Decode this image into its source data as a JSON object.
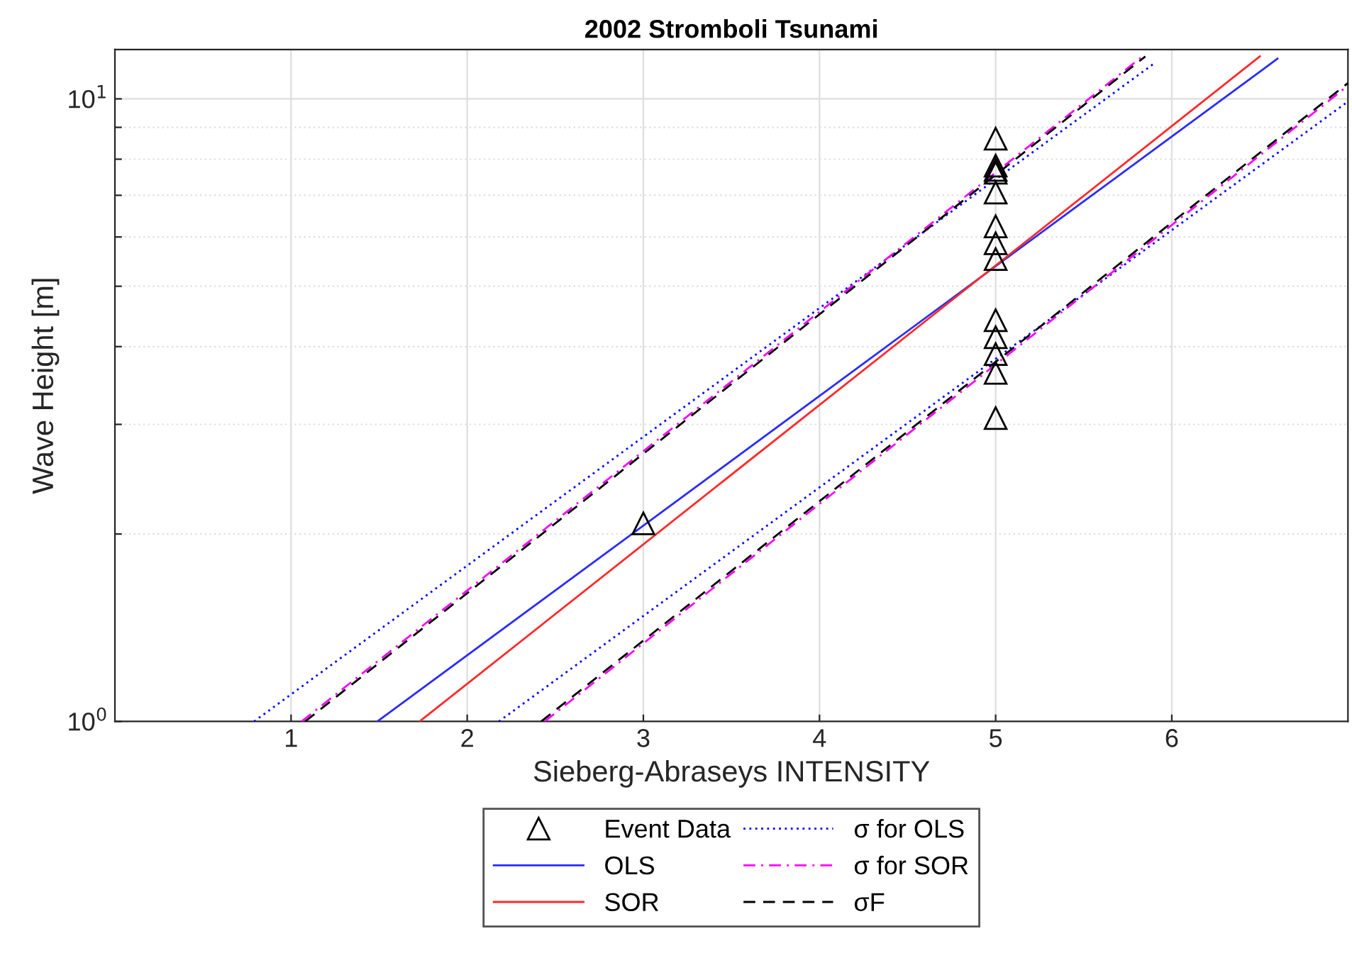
{
  "chart_data": {
    "type": "line",
    "title": "2002 Stromboli Tsunami",
    "xlabel": "Sieberg-Abraseys INTENSITY",
    "ylabel": "Wave Height [m]",
    "log": "y",
    "xlim": [
      0,
      7
    ],
    "ylim": [
      1,
      12
    ],
    "xticks": [
      1,
      2,
      3,
      4,
      5,
      6
    ],
    "yticks": [
      {
        "value": 1,
        "label": "10$^{0}$"
      },
      {
        "value": 2,
        "label": null
      },
      {
        "value": 3,
        "label": null
      },
      {
        "value": 4,
        "label": null
      },
      {
        "value": 5,
        "label": null
      },
      {
        "value": 6,
        "label": null
      },
      {
        "value": 7,
        "label": null
      },
      {
        "value": 8,
        "label": null
      },
      {
        "value": 9,
        "label": null
      },
      {
        "value": 10,
        "label": "10$^{1}$"
      }
    ],
    "grid": true,
    "legend": "bottom",
    "series": [
      {
        "name": "Event Data",
        "type": "scatter",
        "marker": "triangle",
        "color": "#000000",
        "x": [
          3,
          5,
          5,
          5,
          5,
          5,
          5,
          5,
          5,
          5,
          5,
          5,
          5,
          5
        ],
        "values": [
          2.08,
          8.63,
          7.81,
          7.69,
          7.61,
          7.07,
          6.24,
          5.86,
          5.53,
          4.41,
          4.14,
          3.89,
          3.63,
          3.07
        ]
      },
      {
        "name": "OLS",
        "line_style": "solid",
        "color": "#2b2bff",
        "x": [
          1.49,
          6.6
        ],
        "values": [
          1,
          11.6
        ]
      },
      {
        "name": "SOR",
        "line_style": "solid",
        "color": "#ff2a2a",
        "x": [
          1.73,
          6.5
        ],
        "values": [
          1,
          11.7
        ]
      },
      {
        "name": "σ for OLS",
        "line_style": "dotted",
        "color": "#0000ff",
        "x": [
          0.79,
          5.9
        ],
        "values": [
          1,
          11.4
        ]
      },
      {
        "line_style": "dotted",
        "color": "#0000ff",
        "x": [
          2.18,
          7
        ],
        "values": [
          1,
          9.9
        ]
      },
      {
        "name": "σ for SOR",
        "line_style": "dashdot",
        "color": "#ff00ff",
        "x": [
          1.06,
          5.85
        ],
        "values": [
          1,
          11.8
        ]
      },
      {
        "line_style": "dashdot",
        "color": "#ff00ff",
        "x": [
          2.44,
          7
        ],
        "values": [
          1,
          10.5
        ]
      },
      {
        "name": "σF",
        "line_style": "dashed",
        "color": "#000000",
        "x": [
          1.08,
          5.85
        ],
        "values": [
          1,
          11.7
        ]
      },
      {
        "line_style": "dashed",
        "color": "#000000",
        "x": [
          2.42,
          7
        ],
        "values": [
          1,
          10.6
        ]
      }
    ]
  }
}
